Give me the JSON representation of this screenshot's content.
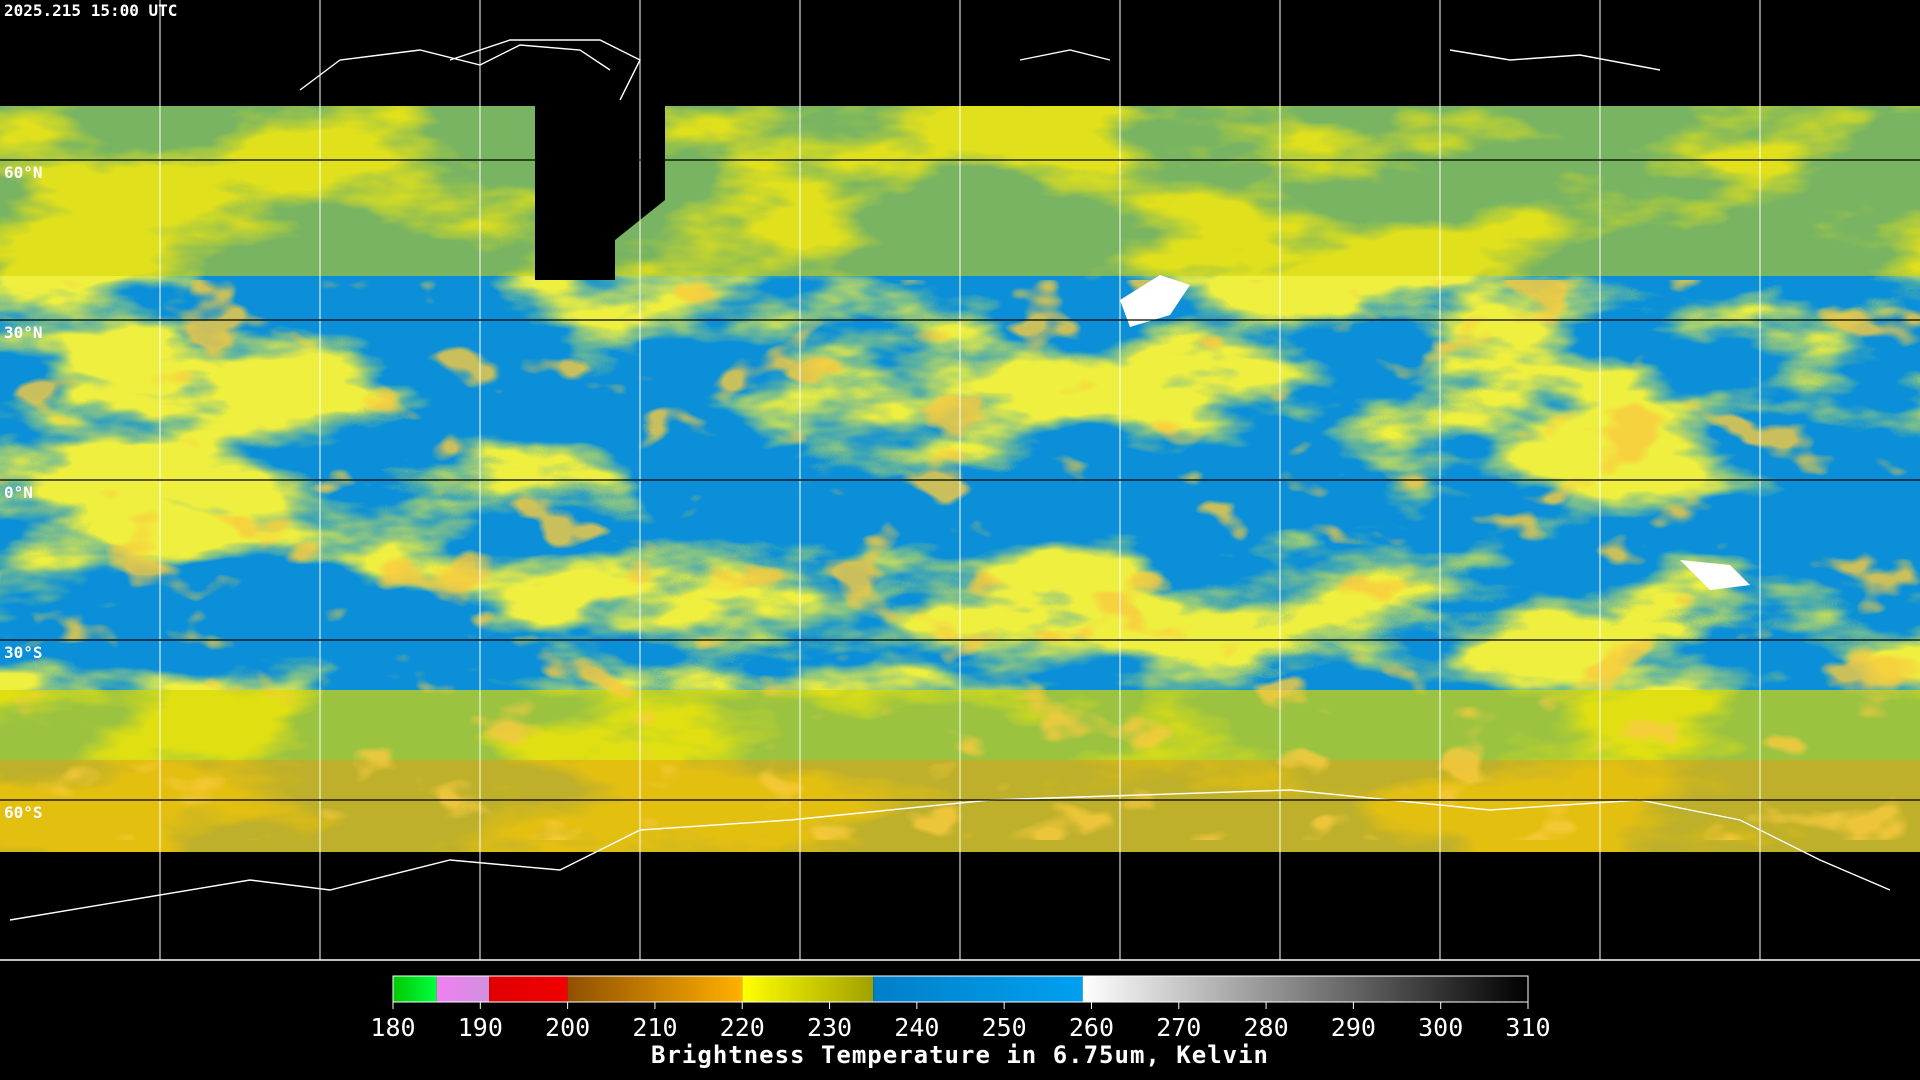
{
  "header": {
    "timestamp": "2025.215 15:00 UTC"
  },
  "map": {
    "lon_lines": [
      -150,
      -120,
      -90,
      -60,
      -30,
      0,
      30,
      60,
      90,
      120,
      150
    ],
    "lat_lines": [
      {
        "value": 60,
        "label": "60°N"
      },
      {
        "value": 30,
        "label": "30°N"
      },
      {
        "value": 0,
        "label": "0°N"
      },
      {
        "value": -30,
        "label": "30°S"
      },
      {
        "value": -60,
        "label": "60°S"
      }
    ]
  },
  "colorbar": {
    "lim": [
      180,
      310
    ],
    "ticks": [
      180,
      190,
      200,
      210,
      220,
      230,
      240,
      250,
      260,
      270,
      280,
      290,
      300,
      310
    ],
    "label": "Brightness Temperature in 6.75um, Kelvin",
    "segments": [
      {
        "from": 180,
        "to": 185,
        "colors": [
          "#00c800",
          "#00ff40"
        ]
      },
      {
        "from": 185,
        "to": 191,
        "colors": [
          "#f080f0",
          "#d090e0"
        ]
      },
      {
        "from": 191,
        "to": 200,
        "colors": [
          "#e00000",
          "#f00000"
        ]
      },
      {
        "from": 200,
        "to": 220,
        "colors": [
          "#905000",
          "#ffb000"
        ]
      },
      {
        "from": 220,
        "to": 235,
        "colors": [
          "#ffff00",
          "#a0a000"
        ]
      },
      {
        "from": 235,
        "to": 259,
        "colors": [
          "#0080c8",
          "#00a0f0"
        ]
      },
      {
        "from": 259,
        "to": 310,
        "colors": [
          "#ffffff",
          "#000000"
        ]
      }
    ]
  }
}
